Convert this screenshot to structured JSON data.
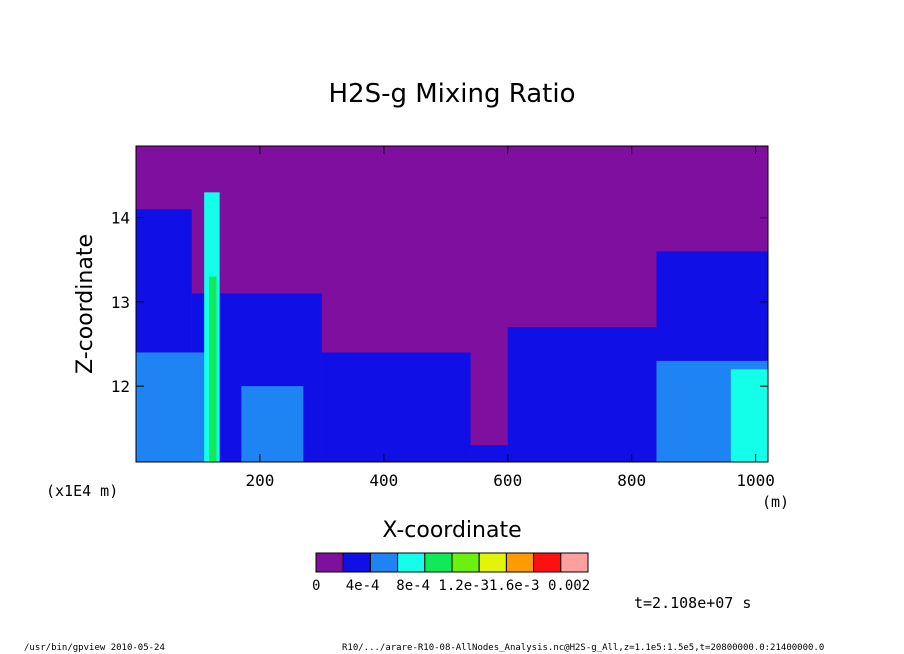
{
  "chart_data": {
    "type": "heatmap",
    "title": "H2S-g Mixing Ratio",
    "xlabel": "X-coordinate",
    "ylabel": "Z-coordinate",
    "x_unit": "(m)",
    "y_unit": "(x1E4 m)",
    "xlim": [
      0,
      1020
    ],
    "ylim": [
      11.1,
      14.85
    ],
    "x_ticks": [
      200,
      400,
      600,
      800,
      1000
    ],
    "y_ticks": [
      12,
      13,
      14
    ],
    "x_tick_labels": [
      "200",
      "400",
      "600",
      "800",
      "1000"
    ],
    "y_tick_labels": [
      "12",
      "13",
      "14"
    ],
    "legend": {
      "colors": [
        "#7f0f9e",
        "#1010e6",
        "#1e84f4",
        "#14ffea",
        "#10ea58",
        "#6cf010",
        "#e2f40a",
        "#ff9a00",
        "#ff1010",
        "#ffa0a0"
      ],
      "labels": [
        "0",
        "4e-4",
        "8e-4",
        "1.2e-3",
        "1.6e-3",
        "0.002"
      ],
      "label_text": "0   4e-4  8e-4 1.2e-31.6e-3 0.002"
    },
    "time_label": "t=2.108e+07 s",
    "background_level": 0,
    "regions": [
      {
        "level": 1,
        "x_range": [
          0,
          90
        ],
        "z_top": 14.1
      },
      {
        "level": 1,
        "x_range": [
          90,
          300
        ],
        "z_top": 13.1
      },
      {
        "level": 1,
        "x_range": [
          300,
          540
        ],
        "z_top": 12.4
      },
      {
        "level": 1,
        "x_range": [
          540,
          600
        ],
        "z_top": 11.3
      },
      {
        "level": 1,
        "x_range": [
          600,
          840
        ],
        "z_top": 12.7
      },
      {
        "level": 1,
        "x_range": [
          840,
          1020
        ],
        "z_top": 13.6
      },
      {
        "level": 2,
        "x_range": [
          0,
          120
        ],
        "z_top": 12.4
      },
      {
        "level": 2,
        "x_range": [
          170,
          270
        ],
        "z_top": 12.0
      },
      {
        "level": 2,
        "x_range": [
          840,
          1020
        ],
        "z_top": 12.3
      },
      {
        "level": 3,
        "x_range": [
          110,
          135
        ],
        "z_top": 14.3
      },
      {
        "level": 3,
        "x_range": [
          960,
          1020
        ],
        "z_top": 12.2
      },
      {
        "level": 4,
        "x_range": [
          118,
          130
        ],
        "z_top": 13.3
      }
    ]
  },
  "footer": {
    "left": "/usr/bin/gpview   2010-05-24",
    "right": "R10/.../arare-R10-08-AllNodes_Analysis.nc@H2S-g_All,z=1.1e5:1.5e5,t=20800000.0:21400000.0"
  }
}
